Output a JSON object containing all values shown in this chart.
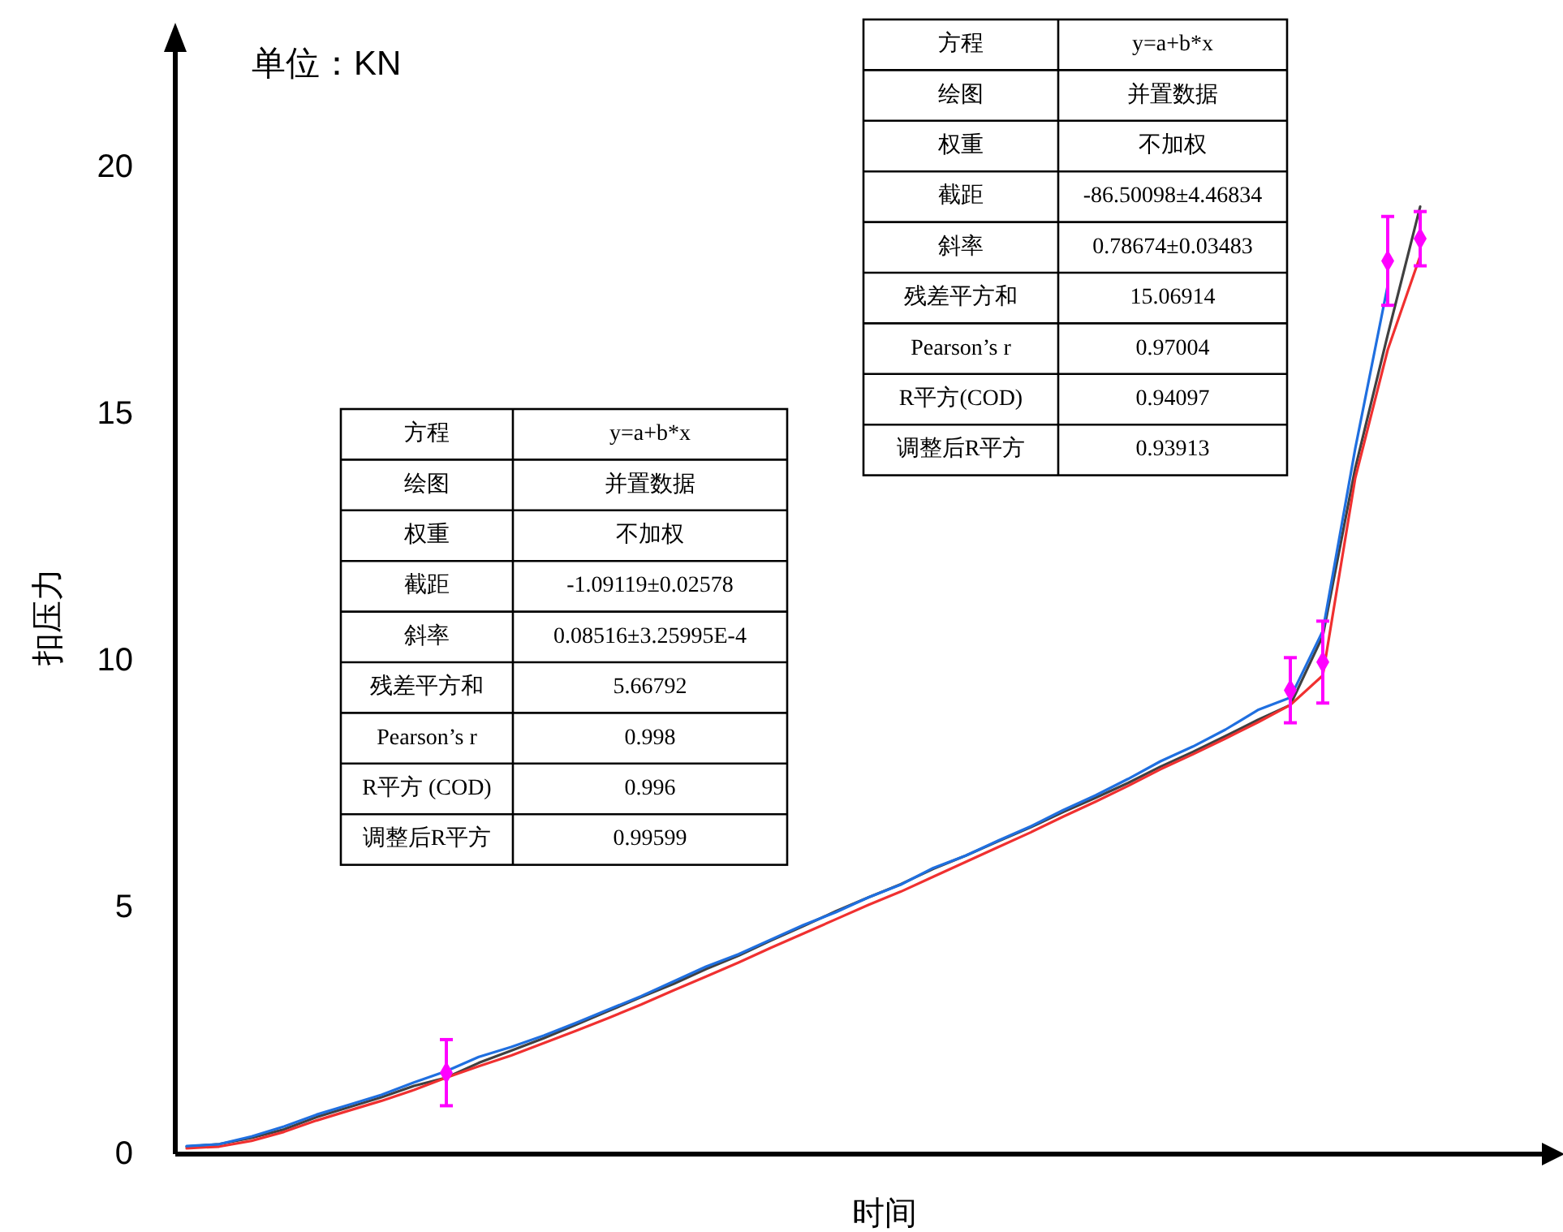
{
  "chart_data": {
    "type": "line",
    "xlabel": "时间",
    "ylabel": "扣压力",
    "ylim": [
      0,
      22.4
    ],
    "yticks": [
      0,
      5,
      10,
      15,
      20
    ],
    "tick_labels": "y",
    "marker": "none",
    "grid": false,
    "categories": [
      null,
      null,
      null,
      null,
      null,
      null,
      null,
      null,
      null,
      null,
      null,
      null,
      null,
      null,
      null,
      null,
      null,
      null,
      null,
      null,
      null,
      null,
      null,
      null,
      null,
      null,
      null,
      null,
      null,
      null,
      null,
      null,
      null,
      null,
      null,
      null,
      null,
      null,
      null,
      null
    ],
    "series": [
      {
        "color": "#404040",
        "values": [
          0.15,
          0.2,
          0.33,
          0.5,
          0.75,
          0.95,
          1.15,
          1.38,
          1.55,
          1.85,
          2.1,
          2.35,
          2.62,
          2.9,
          3.18,
          3.45,
          3.75,
          4.02,
          4.33,
          4.62,
          4.92,
          5.2,
          5.47,
          5.78,
          6.05,
          6.34,
          6.62,
          6.93,
          7.22,
          7.52,
          7.85,
          8.15,
          8.47,
          8.8,
          9.1,
          10.5,
          13.9,
          16.6,
          19.2,
          null
        ]
      },
      {
        "color": "#f03030",
        "values": [
          0.12,
          0.15,
          0.27,
          0.45,
          0.68,
          0.88,
          1.08,
          1.3,
          1.55,
          1.78,
          2.0,
          2.25,
          2.5,
          2.76,
          3.03,
          3.32,
          3.6,
          3.88,
          4.18,
          4.47,
          4.76,
          5.05,
          5.32,
          5.62,
          5.92,
          6.22,
          6.52,
          6.84,
          7.14,
          7.46,
          7.8,
          8.1,
          8.42,
          8.75,
          9.1,
          9.7,
          13.7,
          16.3,
          18.2,
          null
        ]
      },
      {
        "color": "#1f6fe0",
        "values": [
          0.16,
          0.2,
          0.36,
          0.56,
          0.8,
          1.0,
          1.2,
          1.45,
          1.68,
          1.97,
          2.17,
          2.4,
          2.66,
          2.93,
          3.2,
          3.5,
          3.8,
          4.05,
          4.35,
          4.64,
          4.9,
          5.2,
          5.46,
          5.8,
          6.05,
          6.35,
          6.64,
          6.97,
          7.27,
          7.6,
          7.96,
          8.26,
          8.6,
          9.0,
          9.25,
          10.6,
          14.3,
          17.6,
          null,
          null
        ]
      },
      {
        "type": "scatter",
        "marker": "diamond",
        "color": "#ff00ff",
        "values": [
          null,
          null,
          null,
          null,
          null,
          null,
          null,
          null,
          1.65,
          null,
          null,
          null,
          null,
          null,
          null,
          null,
          null,
          null,
          null,
          null,
          null,
          null,
          null,
          null,
          null,
          null,
          null,
          null,
          null,
          null,
          null,
          null,
          null,
          null,
          9.4,
          9.97,
          null,
          18.1,
          18.55,
          null
        ],
        "errors": [
          null,
          null,
          null,
          null,
          null,
          null,
          null,
          null,
          0.67,
          null,
          null,
          null,
          null,
          null,
          null,
          null,
          null,
          null,
          null,
          null,
          null,
          null,
          null,
          null,
          null,
          null,
          null,
          null,
          null,
          null,
          null,
          null,
          null,
          null,
          0.66,
          0.83,
          null,
          0.9,
          0.55,
          null
        ]
      }
    ],
    "annotations": [
      "单位：KN",
      "方程",
      "y=a+b*x",
      "绘图",
      "并置数据",
      "权重",
      "不加权",
      "截距",
      "-1.09119±0.02578",
      "斜率",
      "0.08516±3.25995E-4",
      "残差平方和",
      "5.66792",
      "Pearson’s r",
      "0.998",
      "R平方 (COD)",
      "0.996",
      "调整后R平方",
      "0.99599",
      "方程",
      "y=a+b*x",
      "绘图",
      "并置数据",
      "权重",
      "不加权",
      "截距",
      "-86.50098±4.46834",
      "斜率",
      "0.78674±0.03483",
      "残差平方和",
      "15.06914",
      "Pearson’s r",
      "0.97004",
      "R平方(COD)",
      "0.94097",
      "调整后R平方",
      "0.93913"
    ]
  }
}
